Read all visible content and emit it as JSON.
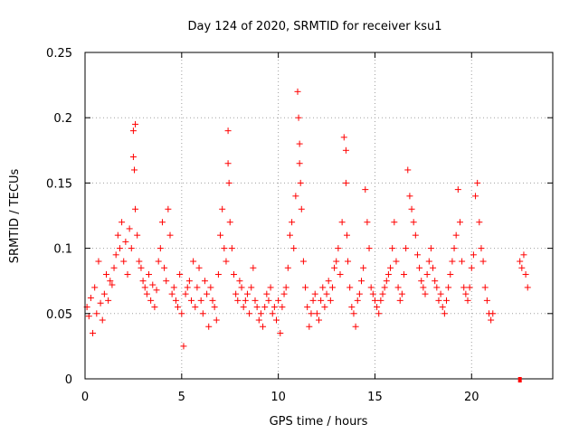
{
  "chart_data": {
    "type": "scatter",
    "title": "Day 124 of 2020, SRMTID for receiver ksu1",
    "xlabel": "GPS time / hours",
    "ylabel": "SRMTID / TECUs",
    "xlim": [
      0,
      24.2
    ],
    "ylim": [
      0,
      0.25
    ],
    "xticks": [
      0,
      5,
      10,
      15,
      20
    ],
    "xtick_labels": [
      "0",
      "5",
      "10",
      "15",
      "20"
    ],
    "yticks": [
      0,
      0.05,
      0.1,
      0.15,
      0.2,
      0.25
    ],
    "ytick_labels": [
      "0",
      "0.05",
      "0.1",
      "0.15",
      "0.2",
      "0.25"
    ],
    "grid": true,
    "marker": "+",
    "color": "#ff0000",
    "series": [
      {
        "name": "SRMTID",
        "x": [
          0.1,
          0.2,
          0.3,
          0.4,
          0.5,
          0.6,
          0.7,
          0.8,
          0.9,
          1.0,
          1.1,
          1.2,
          1.3,
          1.4,
          1.5,
          1.6,
          1.7,
          1.8,
          1.9,
          2.0,
          2.1,
          2.2,
          2.3,
          2.4,
          2.5,
          2.5,
          2.55,
          2.6,
          2.6,
          2.7,
          2.8,
          2.9,
          3.0,
          3.1,
          3.2,
          3.3,
          3.4,
          3.5,
          3.6,
          3.7,
          3.8,
          3.9,
          4.0,
          4.1,
          4.2,
          4.3,
          4.4,
          4.5,
          4.6,
          4.7,
          4.8,
          4.9,
          5.0,
          5.1,
          5.2,
          5.3,
          5.4,
          5.5,
          5.6,
          5.7,
          5.8,
          5.9,
          6.0,
          6.1,
          6.2,
          6.3,
          6.4,
          6.5,
          6.6,
          6.7,
          6.8,
          6.9,
          7.0,
          7.1,
          7.2,
          7.3,
          7.4,
          7.4,
          7.45,
          7.5,
          7.6,
          7.7,
          7.8,
          7.9,
          8.0,
          8.1,
          8.2,
          8.3,
          8.4,
          8.5,
          8.6,
          8.7,
          8.8,
          8.9,
          9.0,
          9.1,
          9.2,
          9.3,
          9.4,
          9.5,
          9.6,
          9.7,
          9.8,
          9.9,
          10.0,
          10.1,
          10.2,
          10.3,
          10.4,
          10.5,
          10.6,
          10.7,
          10.8,
          10.9,
          11.0,
          11.05,
          11.1,
          11.1,
          11.15,
          11.2,
          11.3,
          11.4,
          11.5,
          11.6,
          11.7,
          11.8,
          11.9,
          12.0,
          12.1,
          12.2,
          12.3,
          12.4,
          12.5,
          12.6,
          12.7,
          12.8,
          12.9,
          13.0,
          13.1,
          13.2,
          13.3,
          13.4,
          13.5,
          13.5,
          13.55,
          13.6,
          13.7,
          13.8,
          13.9,
          14.0,
          14.1,
          14.2,
          14.3,
          14.4,
          14.5,
          14.6,
          14.7,
          14.8,
          14.9,
          15.0,
          15.1,
          15.2,
          15.3,
          15.4,
          15.5,
          15.6,
          15.7,
          15.8,
          15.9,
          16.0,
          16.1,
          16.2,
          16.3,
          16.4,
          16.5,
          16.6,
          16.7,
          16.8,
          16.9,
          17.0,
          17.1,
          17.2,
          17.3,
          17.4,
          17.5,
          17.6,
          17.7,
          17.8,
          17.9,
          18.0,
          18.1,
          18.2,
          18.3,
          18.4,
          18.5,
          18.6,
          18.7,
          18.8,
          18.9,
          19.0,
          19.1,
          19.2,
          19.3,
          19.4,
          19.5,
          19.6,
          19.7,
          19.8,
          19.9,
          20.0,
          20.1,
          20.2,
          20.3,
          20.4,
          20.5,
          20.6,
          20.7,
          20.8,
          20.9,
          21.0,
          21.1,
          22.5,
          22.6,
          22.7,
          22.8,
          22.9
        ],
        "y": [
          0.055,
          0.048,
          0.062,
          0.035,
          0.07,
          0.05,
          0.09,
          0.058,
          0.045,
          0.065,
          0.08,
          0.06,
          0.075,
          0.072,
          0.085,
          0.095,
          0.11,
          0.1,
          0.12,
          0.09,
          0.105,
          0.08,
          0.115,
          0.1,
          0.19,
          0.17,
          0.16,
          0.195,
          0.13,
          0.11,
          0.09,
          0.085,
          0.075,
          0.07,
          0.065,
          0.08,
          0.06,
          0.072,
          0.055,
          0.068,
          0.09,
          0.1,
          0.12,
          0.085,
          0.075,
          0.13,
          0.11,
          0.065,
          0.07,
          0.06,
          0.055,
          0.08,
          0.05,
          0.025,
          0.065,
          0.07,
          0.075,
          0.06,
          0.09,
          0.055,
          0.07,
          0.085,
          0.06,
          0.05,
          0.075,
          0.065,
          0.04,
          0.07,
          0.06,
          0.055,
          0.045,
          0.08,
          0.11,
          0.13,
          0.1,
          0.09,
          0.19,
          0.165,
          0.15,
          0.12,
          0.1,
          0.08,
          0.065,
          0.06,
          0.075,
          0.07,
          0.055,
          0.06,
          0.065,
          0.05,
          0.07,
          0.085,
          0.06,
          0.055,
          0.045,
          0.05,
          0.04,
          0.055,
          0.065,
          0.06,
          0.07,
          0.05,
          0.055,
          0.045,
          0.06,
          0.035,
          0.055,
          0.065,
          0.07,
          0.085,
          0.11,
          0.12,
          0.1,
          0.14,
          0.22,
          0.2,
          0.18,
          0.165,
          0.15,
          0.13,
          0.09,
          0.07,
          0.055,
          0.04,
          0.05,
          0.06,
          0.065,
          0.05,
          0.045,
          0.06,
          0.07,
          0.055,
          0.065,
          0.075,
          0.06,
          0.07,
          0.085,
          0.09,
          0.1,
          0.08,
          0.12,
          0.185,
          0.175,
          0.15,
          0.11,
          0.09,
          0.07,
          0.055,
          0.05,
          0.04,
          0.06,
          0.065,
          0.075,
          0.085,
          0.145,
          0.12,
          0.1,
          0.07,
          0.065,
          0.06,
          0.055,
          0.05,
          0.06,
          0.065,
          0.07,
          0.075,
          0.08,
          0.085,
          0.1,
          0.12,
          0.09,
          0.07,
          0.06,
          0.065,
          0.08,
          0.1,
          0.16,
          0.14,
          0.13,
          0.12,
          0.11,
          0.095,
          0.085,
          0.075,
          0.07,
          0.065,
          0.08,
          0.09,
          0.1,
          0.085,
          0.075,
          0.07,
          0.06,
          0.065,
          0.055,
          0.05,
          0.06,
          0.07,
          0.08,
          0.09,
          0.1,
          0.11,
          0.145,
          0.12,
          0.09,
          0.07,
          0.065,
          0.06,
          0.07,
          0.085,
          0.095,
          0.14,
          0.15,
          0.12,
          0.1,
          0.09,
          0.07,
          0.06,
          0.05,
          0.045,
          0.05,
          0.09,
          0.085,
          0.095,
          0.08,
          0.07
        ]
      }
    ],
    "flag_marker": {
      "x": 22.5,
      "y": 0
    }
  }
}
